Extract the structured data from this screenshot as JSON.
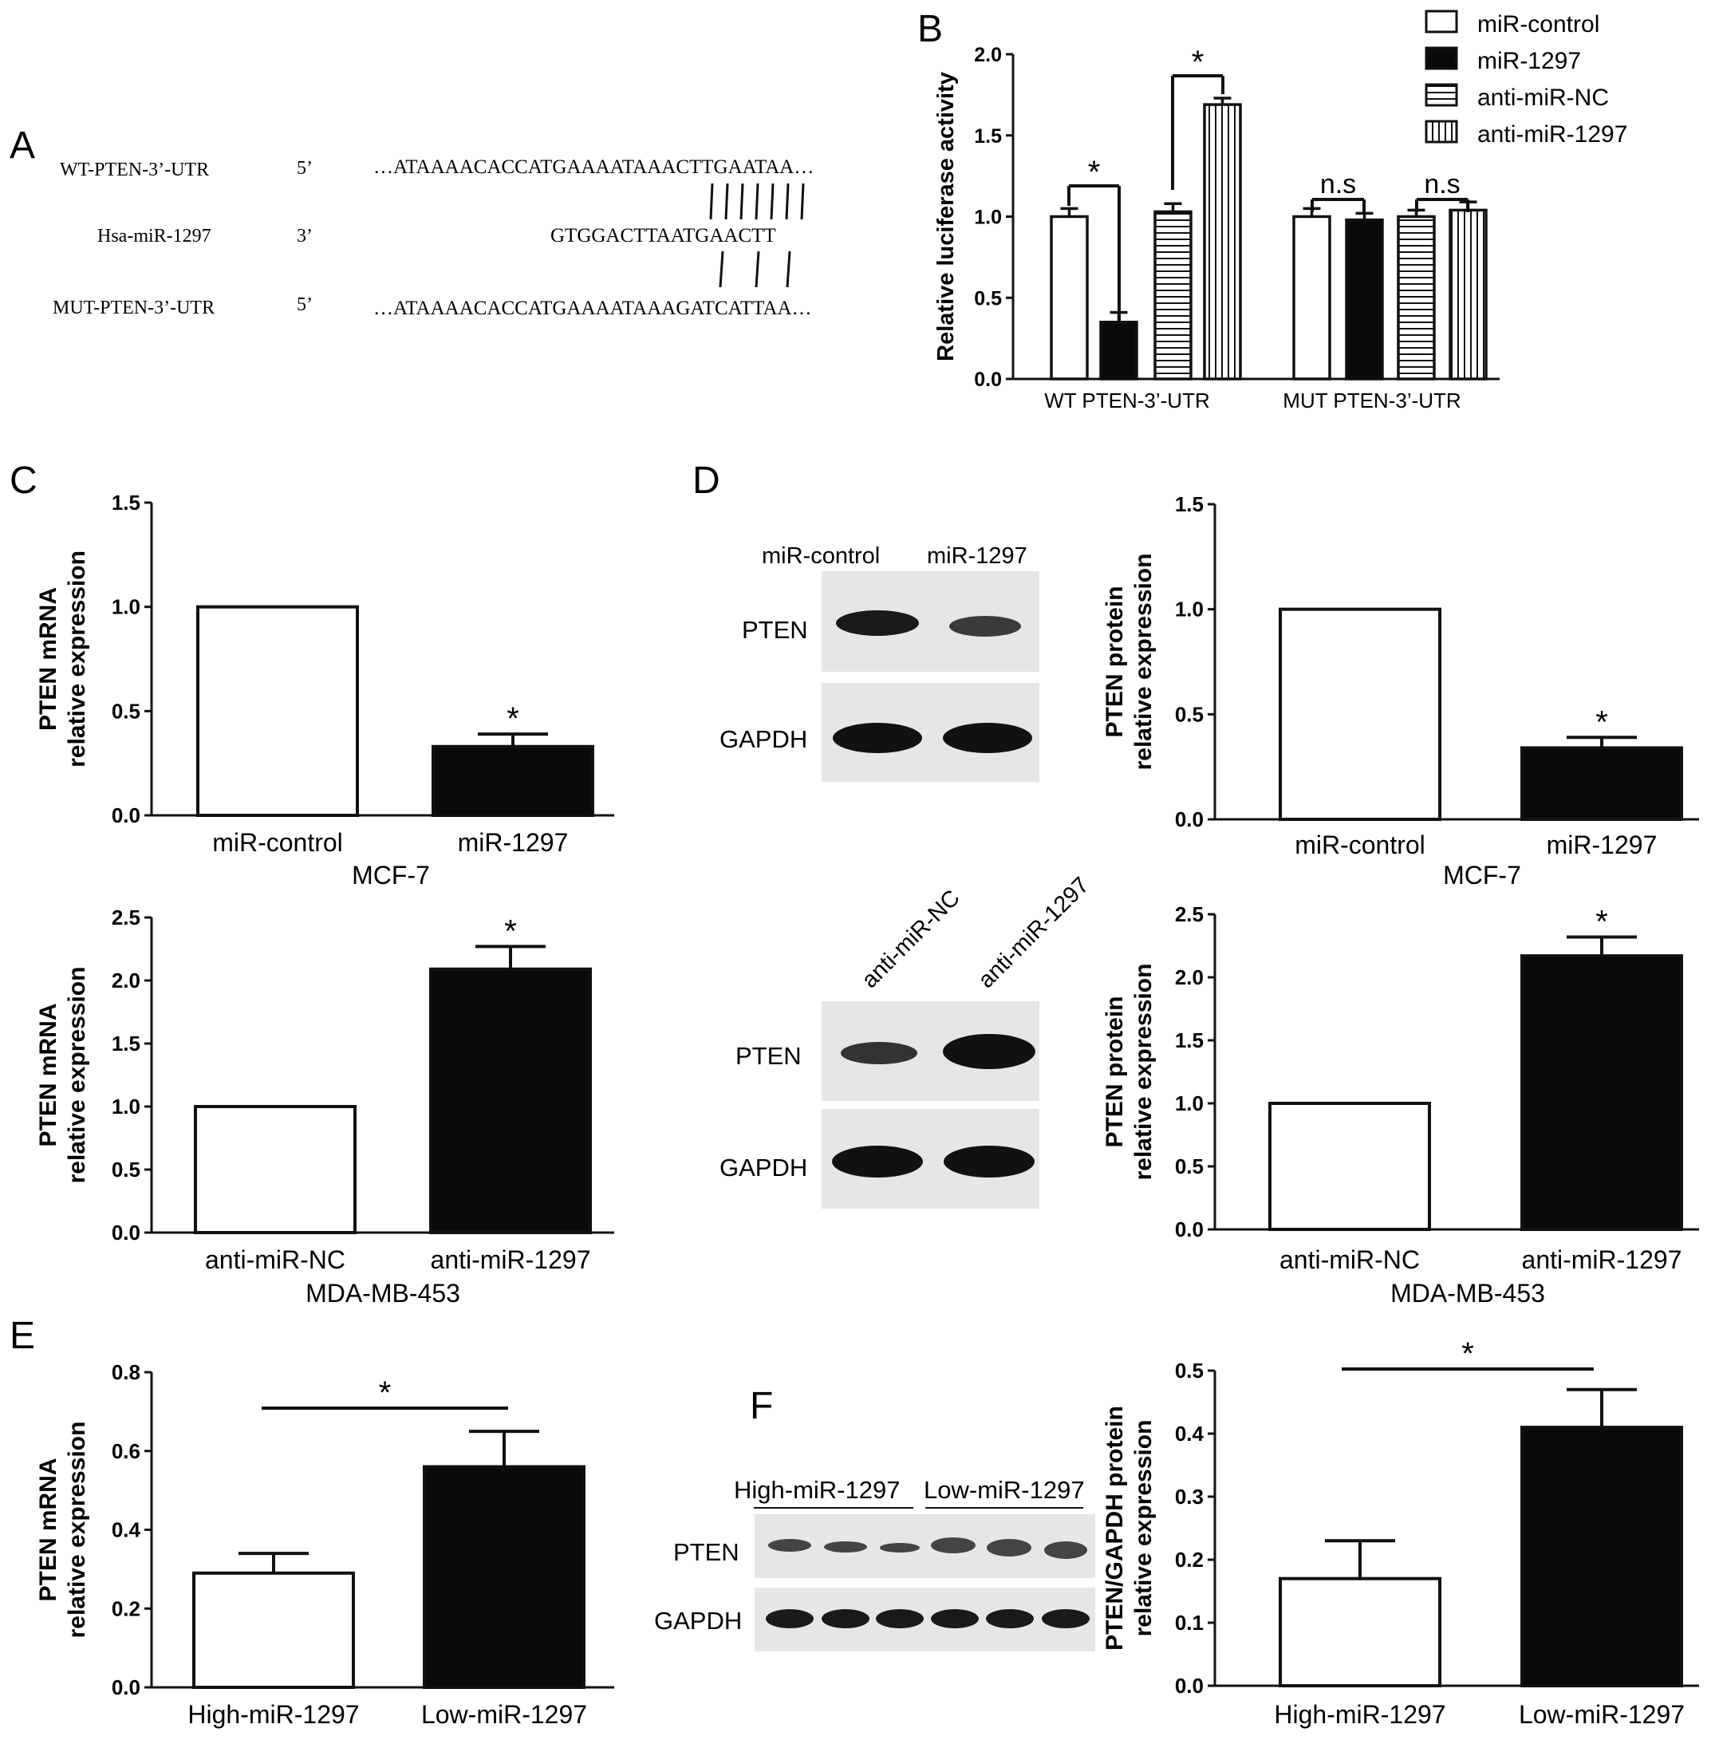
{
  "panel_letters": [
    "A",
    "B",
    "C",
    "D",
    "E",
    "F"
  ],
  "panel_a": {
    "rows": [
      {
        "label": "WT-PTEN-3’-UTR",
        "end": "5’",
        "seq": "…ATAAAACACCATGAAAATAAACTTGAATAA…"
      },
      {
        "label": "Hsa-miR-1297",
        "end": "3’",
        "seq": "GTGGACTTAATGAACTT"
      },
      {
        "label": "MUT-PTEN-3’-UTR",
        "end": "5’",
        "seq": "…ATAAAACACCATGAAAATAAAGATCATTAA…"
      }
    ]
  },
  "blots": {
    "d_top": {
      "lanes": [
        "miR-control",
        "miR-1297"
      ],
      "rows": [
        "PTEN",
        "GAPDH"
      ]
    },
    "d_bottom": {
      "lanes": [
        "anti-miR-NC",
        "anti-miR-1297"
      ],
      "rows": [
        "PTEN",
        "GAPDH"
      ]
    },
    "f": {
      "groups": [
        "High-miR-1297",
        "Low-miR-1297"
      ],
      "rows": [
        "PTEN",
        "GAPDH"
      ]
    }
  },
  "colors": {
    "ink": "#111111",
    "fill_black": "#0a0a0a",
    "fill_white": "#ffffff",
    "blot_bg": "#e6e6e6"
  },
  "chart_data": [
    {
      "id": "B",
      "type": "bar",
      "ylabel": "Relative luciferase activity",
      "ylim": [
        0,
        2.0
      ],
      "yticks": [
        "0.0",
        "0.5",
        "1.0",
        "1.5",
        "2.0"
      ],
      "categories": [
        "WT PTEN-3’-UTR",
        "MUT PTEN-3’-UTR"
      ],
      "series": [
        {
          "name": "miR-control",
          "values": [
            1.0,
            1.0
          ],
          "errors": [
            0.05,
            0.05
          ],
          "pattern": "white"
        },
        {
          "name": "miR-1297",
          "values": [
            0.35,
            0.98
          ],
          "errors": [
            0.06,
            0.04
          ],
          "pattern": "black"
        },
        {
          "name": "anti-miR-NC",
          "values": [
            1.03,
            1.0
          ],
          "errors": [
            0.05,
            0.04
          ],
          "pattern": "hlines"
        },
        {
          "name": "anti-miR-1297",
          "values": [
            1.69,
            1.04
          ],
          "errors": [
            0.04,
            0.05
          ],
          "pattern": "vlines"
        }
      ],
      "annotations": [
        "*",
        "*",
        "n.s",
        "n.s"
      ],
      "legend": "top-right"
    },
    {
      "id": "C1",
      "type": "bar",
      "ylabel": [
        "PTEN mRNA",
        "relative expression"
      ],
      "ylim": [
        0,
        1.5
      ],
      "yticks": [
        "0.0",
        "0.5",
        "1.0",
        "1.5"
      ],
      "categories": [
        "miR-control",
        "miR-1297"
      ],
      "xlabel": "MCF-7",
      "values": [
        1.0,
        0.33
      ],
      "errors": [
        0,
        0.06
      ],
      "fills": [
        "white",
        "black"
      ],
      "annotations": [
        "",
        "*"
      ]
    },
    {
      "id": "C2",
      "type": "bar",
      "ylabel": [
        "PTEN mRNA",
        "relative expression"
      ],
      "ylim": [
        0,
        2.5
      ],
      "yticks": [
        "0.0",
        "0.5",
        "1.0",
        "1.5",
        "2.0",
        "2.5"
      ],
      "categories": [
        "anti-miR-NC",
        "anti-miR-1297"
      ],
      "xlabel": "MDA-MB-453",
      "values": [
        1.0,
        2.09
      ],
      "errors": [
        0,
        0.18
      ],
      "fills": [
        "white",
        "black"
      ],
      "annotations": [
        "",
        "*"
      ]
    },
    {
      "id": "D1",
      "type": "bar",
      "ylabel": [
        "PTEN protein",
        "relative expression"
      ],
      "ylim": [
        0,
        1.5
      ],
      "yticks": [
        "0.0",
        "0.5",
        "1.0",
        "1.5"
      ],
      "categories": [
        "miR-control",
        "miR-1297"
      ],
      "xlabel": "MCF-7",
      "values": [
        1.0,
        0.34
      ],
      "errors": [
        0,
        0.05
      ],
      "fills": [
        "white",
        "black"
      ],
      "annotations": [
        "",
        "*"
      ]
    },
    {
      "id": "D2",
      "type": "bar",
      "ylabel": [
        "PTEN protein",
        "relative expression"
      ],
      "ylim": [
        0,
        2.5
      ],
      "yticks": [
        "0.0",
        "0.5",
        "1.0",
        "1.5",
        "2.0",
        "2.5"
      ],
      "categories": [
        "anti-miR-NC",
        "anti-miR-1297"
      ],
      "xlabel": "MDA-MB-453",
      "values": [
        1.0,
        2.17
      ],
      "errors": [
        0,
        0.15
      ],
      "fills": [
        "white",
        "black"
      ],
      "annotations": [
        "",
        "*"
      ]
    },
    {
      "id": "E",
      "type": "bar",
      "ylabel": [
        "PTEN mRNA",
        "relative expression"
      ],
      "ylim": [
        0,
        0.8
      ],
      "yticks": [
        "0.0",
        "0.2",
        "0.4",
        "0.6",
        "0.8"
      ],
      "categories": [
        "High-miR-1297",
        "Low-miR-1297"
      ],
      "xlabel": "",
      "values": [
        0.29,
        0.56
      ],
      "errors": [
        0.05,
        0.09
      ],
      "fills": [
        "white",
        "black"
      ],
      "annotations": [
        "*"
      ]
    },
    {
      "id": "F",
      "type": "bar",
      "ylabel": [
        "PTEN/GAPDH protein",
        "relative expression"
      ],
      "ylim": [
        0,
        0.5
      ],
      "yticks": [
        "0.0",
        "0.1",
        "0.2",
        "0.3",
        "0.4",
        "0.5"
      ],
      "categories": [
        "High-miR-1297",
        "Low-miR-1297"
      ],
      "xlabel": "",
      "values": [
        0.17,
        0.41
      ],
      "errors": [
        0.06,
        0.06
      ],
      "fills": [
        "white",
        "black"
      ],
      "annotations": [
        "*"
      ]
    }
  ]
}
